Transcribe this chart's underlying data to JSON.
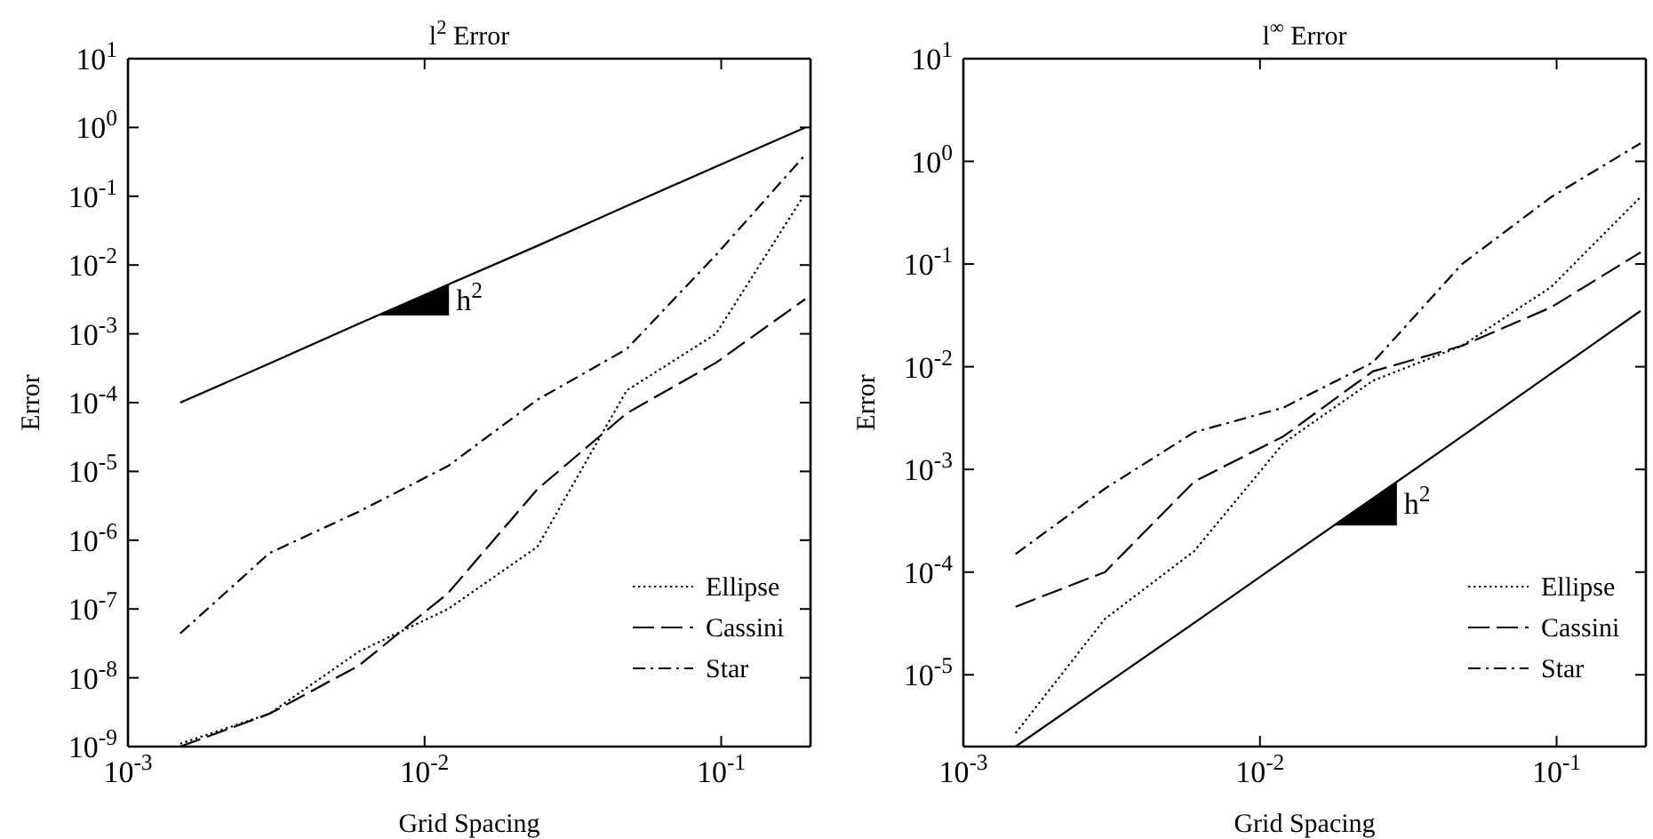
{
  "chart_data": [
    {
      "type": "line",
      "title": "l$^{2}$ Error",
      "xlabel": "Grid Spacing",
      "ylabel": "Error",
      "log": "xy",
      "grid": false,
      "legend": "bottom right",
      "x": [
        0.0015,
        0.003,
        0.006,
        0.012,
        0.024,
        0.048,
        0.096,
        0.192
      ],
      "xlim": [
        0.001,
        0.2
      ],
      "ylim": [
        1e-09,
        10
      ],
      "xticks": [
        {
          "value": 0.001,
          "label": "10$^{-3}$"
        },
        {
          "value": 0.01,
          "label": "10$^{-2}$"
        },
        {
          "value": 0.1,
          "label": "10$^{-1}$"
        }
      ],
      "yticks": [
        {
          "value": 10,
          "label": "10$^{1}$"
        },
        {
          "value": 1,
          "label": "10$^{0}$"
        },
        {
          "value": 0.1,
          "label": "10$^{-1}$"
        },
        {
          "value": 0.01,
          "label": "10$^{-2}$"
        },
        {
          "value": 0.001,
          "label": "10$^{-3}$"
        },
        {
          "value": 0.0001,
          "label": "10$^{-4}$"
        },
        {
          "value": 1e-05,
          "label": "10$^{-5}$"
        },
        {
          "value": 1e-06,
          "label": "10$^{-6}$"
        },
        {
          "value": 1e-07,
          "label": "10$^{-7}$"
        },
        {
          "value": 1e-08,
          "label": "10$^{-8}$"
        },
        {
          "value": 1e-09,
          "label": "10$^{-9}$"
        }
      ],
      "annotations": [
        "h$^{2}$"
      ],
      "series": [
        {
          "type": "line",
          "values": [
            0.0001,
            0.00037,
            0.0014,
            0.0052,
            0.019,
            0.072,
            0.27,
            1
          ],
          "color": "#000000",
          "line_style": "solid"
        },
        {
          "name": "Ellipse",
          "color": "#000000",
          "line_style": "dotted",
          "values": [
            1.1e-09,
            3e-09,
            2.4e-08,
            1e-07,
            8e-07,
            0.00015,
            0.001,
            0.11
          ]
        },
        {
          "name": "Cassini",
          "color": "#000000",
          "line_style": "dashed",
          "values": [
            1e-09,
            3e-09,
            1.5e-08,
            1.7e-07,
            5.5e-06,
            7e-05,
            0.00038,
            0.0032
          ]
        },
        {
          "name": "Star",
          "color": "#000000",
          "line_style": "dashdot",
          "values": [
            4.4e-08,
            6.5e-07,
            2.6e-06,
            1.2e-05,
            0.00011,
            0.0006,
            0.014,
            0.4
          ]
        }
      ]
    },
    {
      "type": "line",
      "title": "l$^{∞}$ Error",
      "xlabel": "Grid Spacing",
      "ylabel": "Error",
      "log": "xy",
      "grid": false,
      "legend": "bottom right",
      "x": [
        0.0015,
        0.003,
        0.006,
        0.012,
        0.024,
        0.048,
        0.096,
        0.192
      ],
      "xlim": [
        0.001,
        0.2
      ],
      "ylim": [
        2e-06,
        10
      ],
      "xticks": [
        {
          "value": 0.001,
          "label": "10$^{-3}$"
        },
        {
          "value": 0.01,
          "label": "10$^{-2}$"
        },
        {
          "value": 0.1,
          "label": "10$^{-1}$"
        }
      ],
      "yticks": [
        {
          "value": 10,
          "label": "10$^{1}$"
        },
        {
          "value": 1,
          "label": "10$^{0}$"
        },
        {
          "value": 0.1,
          "label": "10$^{-1}$"
        },
        {
          "value": 0.01,
          "label": "10$^{-2}$"
        },
        {
          "value": 0.001,
          "label": "10$^{-3}$"
        },
        {
          "value": 0.0001,
          "label": "10$^{-4}$"
        },
        {
          "value": 1e-05,
          "label": "10$^{-5}$"
        }
      ],
      "annotations": [
        "h$^{2}$"
      ],
      "series": [
        {
          "type": "line",
          "values": [
            2e-06,
            8e-06,
            3.2e-05,
            0.00013,
            0.00052,
            0.0021,
            0.0086,
            0.035
          ],
          "color": "#000000",
          "line_style": "solid"
        },
        {
          "name": "Ellipse",
          "color": "#000000",
          "line_style": "dotted",
          "values": [
            2.7e-06,
            3.5e-05,
            0.00016,
            0.0018,
            0.0073,
            0.016,
            0.06,
            0.45
          ]
        },
        {
          "name": "Cassini",
          "color": "#000000",
          "line_style": "dashed",
          "values": [
            4.6e-05,
            0.0001,
            0.00076,
            0.0021,
            0.009,
            0.016,
            0.038,
            0.13
          ]
        },
        {
          "name": "Star",
          "color": "#000000",
          "line_style": "dashdot",
          "values": [
            0.00015,
            0.00065,
            0.0023,
            0.004,
            0.011,
            0.1,
            0.45,
            1.5
          ]
        }
      ]
    }
  ]
}
